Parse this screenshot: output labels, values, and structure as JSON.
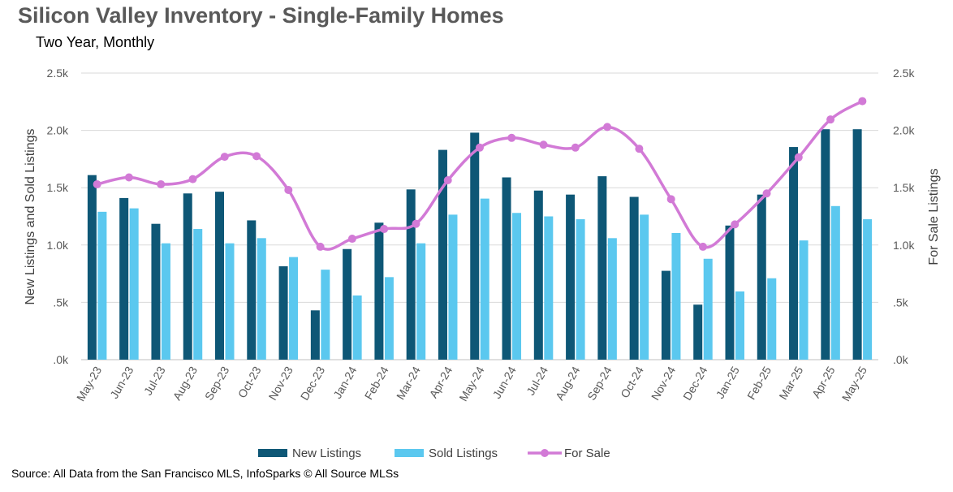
{
  "colors": {
    "new": "#0e5776",
    "sold": "#5bc8ef",
    "forsale": "#d27ad6",
    "grid": "#d9d9d9"
  },
  "chart_data": {
    "type": "bar",
    "title": "Silicon Valley Inventory - Single-Family Homes",
    "subtitle": "Two Year, Monthly",
    "ylabel": "New Listings and Sold Listings",
    "y2label": "For Sale Listings",
    "ylim": [
      0,
      2500
    ],
    "y2lim": [
      0,
      2500
    ],
    "yticks": [
      ".0k",
      ".5k",
      "1.0k",
      "1.5k",
      "2.0k",
      "2.5k"
    ],
    "grid": true,
    "legend_position": "bottom",
    "categories": [
      "May-23",
      "Jun-23",
      "Jul-23",
      "Aug-23",
      "Sep-23",
      "Oct-23",
      "Nov-23",
      "Dec-23",
      "Jan-24",
      "Feb-24",
      "Mar-24",
      "Apr-24",
      "May-24",
      "Jun-24",
      "Jul-24",
      "Aug-24",
      "Sep-24",
      "Oct-24",
      "Nov-24",
      "Dec-24",
      "Jan-25",
      "Feb-25",
      "Mar-25",
      "Apr-25",
      "May-25"
    ],
    "series": [
      {
        "name": "New Listings",
        "kind": "bar",
        "values": [
          1610,
          1410,
          1185,
          1450,
          1465,
          1215,
          815,
          430,
          965,
          1195,
          1485,
          1830,
          1980,
          1590,
          1475,
          1440,
          1600,
          1420,
          775,
          480,
          1170,
          1440,
          1855,
          2010,
          2010
        ]
      },
      {
        "name": "Sold Listings",
        "kind": "bar",
        "values": [
          1290,
          1320,
          1015,
          1140,
          1015,
          1060,
          895,
          785,
          560,
          720,
          1015,
          1265,
          1405,
          1280,
          1250,
          1225,
          1060,
          1265,
          1105,
          880,
          595,
          710,
          1040,
          1340,
          1225
        ]
      },
      {
        "name": "For Sale",
        "kind": "line",
        "axis": "right",
        "values": [
          1530,
          1590,
          1530,
          1575,
          1770,
          1775,
          1480,
          985,
          1055,
          1140,
          1185,
          1565,
          1850,
          1935,
          1875,
          1850,
          2030,
          1840,
          1400,
          985,
          1180,
          1450,
          1765,
          2095,
          2255
        ]
      }
    ]
  },
  "source": "Source: All Data from the San Francisco MLS, InfoSparks © All Source MLSs"
}
